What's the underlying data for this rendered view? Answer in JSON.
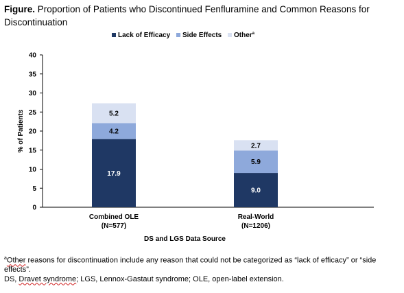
{
  "header": {
    "label": "Figure.",
    "text": "Proportion of Patients who Discontinued Fenfluramine and Common Reasons for Discontinuation"
  },
  "footnotes": {
    "marker": "a",
    "other_word": "Other",
    "other_rest": " reasons for discontinuation include any reason that could not be categorized as “lack of efficacy” or “side effects”.",
    "abbrev_ds": "DS, ",
    "abbrev_dravet": "Dravet syndrome",
    "abbrev_rest": "; LGS, Lennox-Gastaut syndrome; OLE, open-label extension."
  },
  "chart_data": {
    "type": "bar",
    "stacked": true,
    "categories": [
      "Combined OLE\n(N=577)",
      "Real-World\n(N=1206)"
    ],
    "series": [
      {
        "name": "Lack of Efficacy",
        "color": "#1f3864",
        "values": [
          17.9,
          9.0
        ],
        "labels": [
          "17.9",
          "9.0"
        ],
        "label_color": "#ffffff"
      },
      {
        "name": "Side Effects",
        "color": "#8ea9db",
        "values": [
          4.2,
          5.9
        ],
        "labels": [
          "4.2",
          "5.9"
        ],
        "label_color": "#000000"
      },
      {
        "name": "Other",
        "legend_superscript": "a",
        "color": "#d9e1f2",
        "values": [
          5.2,
          2.7
        ],
        "labels": [
          "5.2",
          "2.7"
        ],
        "label_color": "#000000"
      }
    ],
    "ylabel": "% of Patients",
    "xlabel": "DS and LGS Data Source",
    "ylim": [
      0,
      40
    ],
    "yticks": [
      0,
      5,
      10,
      15,
      20,
      25,
      30,
      35,
      40
    ],
    "grid": false,
    "legend_position": "top"
  }
}
